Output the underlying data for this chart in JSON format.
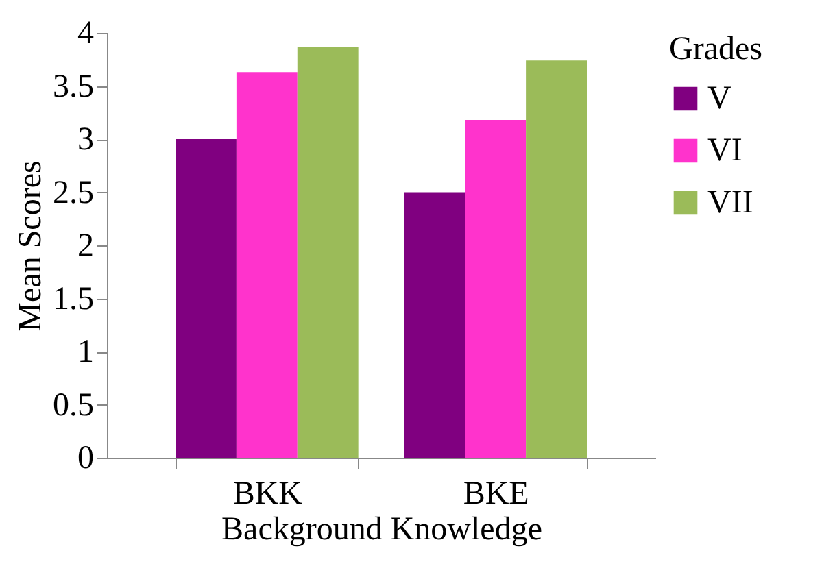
{
  "chart_data": {
    "type": "bar",
    "xlabel": "Background Knowledge",
    "ylabel": "Mean Scores",
    "legend_title": "Grades",
    "categories": [
      "BKK",
      "BKE"
    ],
    "series": [
      {
        "name": "V",
        "color": "#800080",
        "values": [
          3.0,
          2.5
        ]
      },
      {
        "name": "VI",
        "color": "#ff33cc",
        "values": [
          3.63,
          3.18
        ]
      },
      {
        "name": "VII",
        "color": "#9bbb59",
        "values": [
          3.87,
          3.74
        ]
      }
    ],
    "ylim": [
      0,
      4
    ],
    "yticks": [
      0,
      0.5,
      1,
      1.5,
      2,
      2.5,
      3,
      3.5,
      4
    ],
    "grid": false,
    "legend": "right"
  }
}
